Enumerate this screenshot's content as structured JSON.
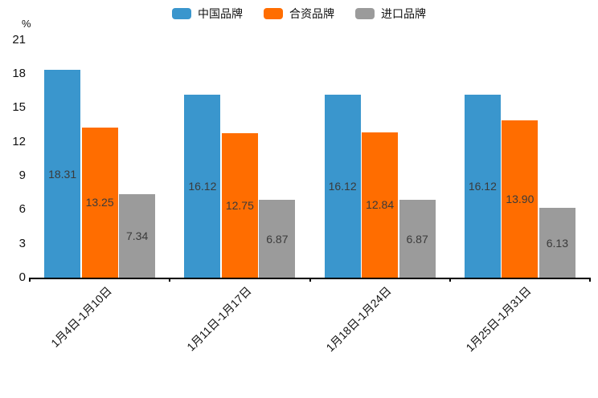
{
  "unit_label": "%",
  "legend": {
    "items": [
      {
        "label": "中国品牌",
        "color": "#3a96cd"
      },
      {
        "label": "合资品牌",
        "color": "#ff6d00"
      },
      {
        "label": "进口品牌",
        "color": "#9b9b9b"
      }
    ]
  },
  "chart_data": {
    "type": "bar",
    "title": "",
    "xlabel": "",
    "ylabel": "%",
    "categories": [
      "1月4日-1月10日",
      "1月11日-1月17日",
      "1月18日-1月24日",
      "1月25日-1月31日"
    ],
    "series": [
      {
        "name": "中国品牌",
        "color": "#3a96cd",
        "values": [
          18.31,
          16.12,
          16.12,
          16.12
        ]
      },
      {
        "name": "合资品牌",
        "color": "#ff6d00",
        "values": [
          13.25,
          12.75,
          12.84,
          13.9
        ]
      },
      {
        "name": "进口品牌",
        "color": "#9b9b9b",
        "values": [
          7.34,
          6.87,
          6.87,
          6.13
        ]
      }
    ],
    "ylim": [
      0,
      21
    ],
    "yticks": [
      0,
      3,
      6,
      9,
      12,
      15,
      18,
      21
    ],
    "grid": false,
    "legend_position": "top",
    "bar_labels": "inside-center, 2 decimal places"
  }
}
